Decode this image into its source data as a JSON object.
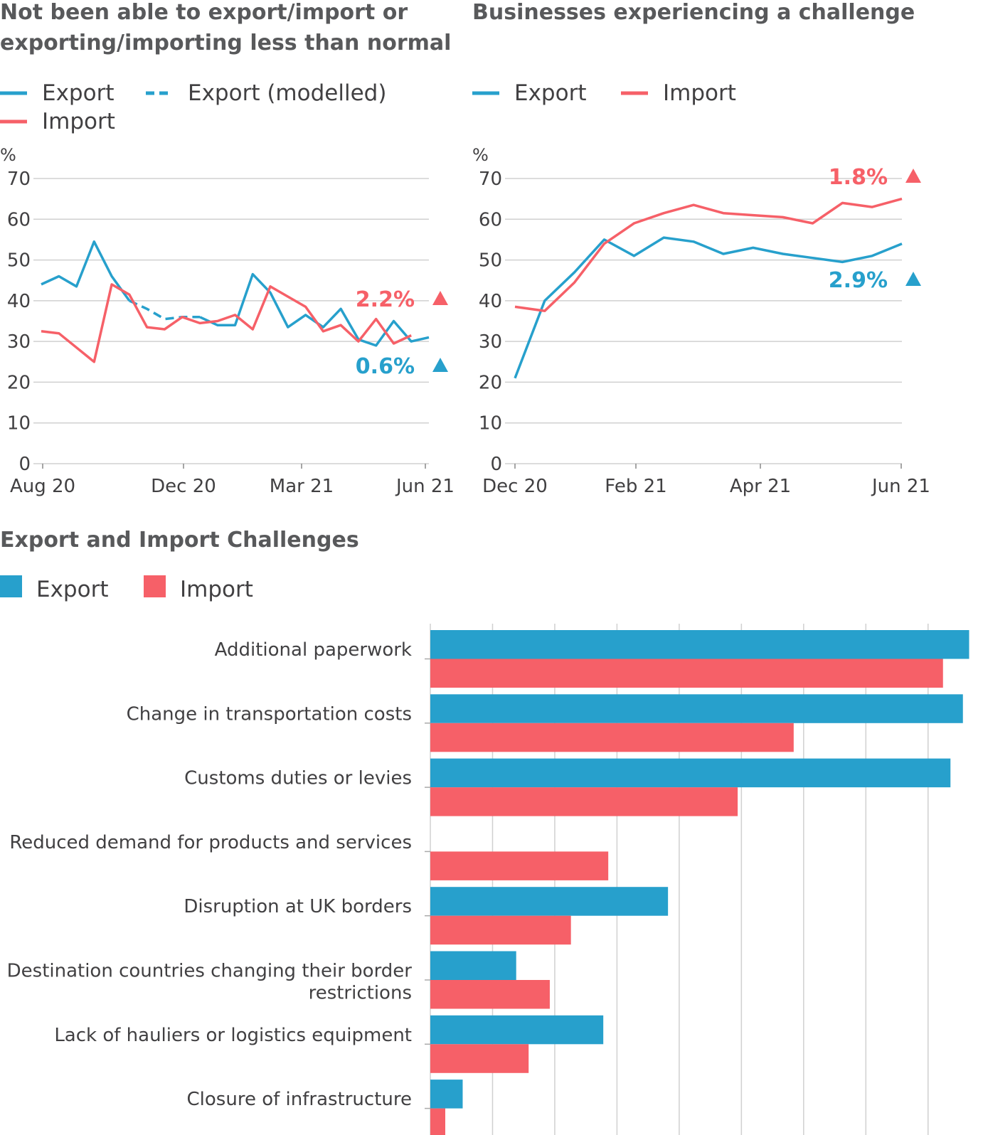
{
  "colors": {
    "export": "#27a0cc",
    "import": "#f66068"
  },
  "chart_data": [
    {
      "type": "line",
      "title_lines": [
        "Not been able to export/import or",
        "exporting/importing less than normal"
      ],
      "legend": [
        "Export",
        "Export (modelled)",
        "Import"
      ],
      "ylabel": "%",
      "ylim": [
        0,
        70
      ],
      "yticks": [
        "0",
        "10",
        "20",
        "30",
        "40",
        "50",
        "60",
        "70"
      ],
      "xticks": [
        "Aug 20",
        "Dec 20",
        "Mar 21",
        "Jun 21"
      ],
      "grid": true,
      "series": [
        {
          "name": "Export",
          "values": [
            44,
            46,
            43.5,
            54.5,
            46,
            40,
            null,
            null,
            null,
            36,
            34,
            34,
            46.5,
            42,
            33.5,
            36.5,
            33.5,
            38,
            30.5,
            29,
            35,
            30,
            31
          ]
        },
        {
          "name": "Export (modelled)",
          "values": [
            null,
            null,
            null,
            null,
            null,
            40,
            38,
            35.5,
            36,
            36,
            null,
            null,
            null,
            null,
            null,
            null,
            null,
            null,
            null,
            null,
            null,
            null,
            null
          ]
        },
        {
          "name": "Import",
          "values": [
            32.5,
            32,
            28.5,
            25,
            44,
            41.5,
            33.5,
            33,
            36,
            34.5,
            35,
            36.5,
            33,
            43.5,
            41,
            38.5,
            32.5,
            34,
            30,
            35.5,
            29.5,
            31.5,
            null
          ]
        }
      ],
      "annotations": [
        {
          "text": "2.2%",
          "series": "Import",
          "direction": "up"
        },
        {
          "text": "0.6%",
          "series": "Export",
          "direction": "up"
        }
      ]
    },
    {
      "type": "line",
      "title_lines": [
        "Businesses experiencing a challenge"
      ],
      "legend": [
        "Export",
        "Import"
      ],
      "ylabel": "%",
      "ylim": [
        0,
        70
      ],
      "yticks": [
        "0",
        "10",
        "20",
        "30",
        "40",
        "50",
        "60",
        "70"
      ],
      "xticks": [
        "Dec 20",
        "Feb 21",
        "Apr 21",
        "Jun 21"
      ],
      "grid": true,
      "series": [
        {
          "name": "Export",
          "values": [
            21,
            40,
            47,
            55,
            51,
            55.5,
            54.5,
            51.5,
            53,
            51.5,
            50.5,
            49.5,
            51,
            54
          ]
        },
        {
          "name": "Import",
          "values": [
            38.5,
            37.5,
            44.5,
            54,
            59,
            61.5,
            63.5,
            61.5,
            61,
            60.5,
            59,
            64,
            63,
            65
          ]
        }
      ],
      "annotations": [
        {
          "text": "1.8%",
          "series": "Import",
          "direction": "up"
        },
        {
          "text": "2.9%",
          "series": "Export",
          "direction": "up"
        }
      ]
    },
    {
      "type": "bar",
      "orientation": "horizontal",
      "title": "Export and Import Challenges",
      "legend": [
        "Export",
        "Import"
      ],
      "categories": [
        [
          "Additional paperwork"
        ],
        [
          "Change in transportation costs"
        ],
        [
          "Customs duties or levies"
        ],
        [
          "Reduced demand for products and services"
        ],
        [
          "Disruption at UK borders"
        ],
        [
          "Destination countries changing their border",
          "restrictions"
        ],
        [
          "Lack of hauliers or logistics equipment"
        ],
        [
          "Closure of infrastructure"
        ]
      ],
      "xlim": [
        0,
        43.5
      ],
      "grid": true,
      "series": [
        {
          "name": "Export",
          "values": [
            43.3,
            42.8,
            41.8,
            0,
            19.1,
            6.9,
            13.9,
            2.6
          ]
        },
        {
          "name": "Import",
          "values": [
            41.2,
            29.2,
            24.7,
            14.3,
            11.3,
            9.6,
            7.9,
            1.2
          ]
        }
      ]
    }
  ]
}
